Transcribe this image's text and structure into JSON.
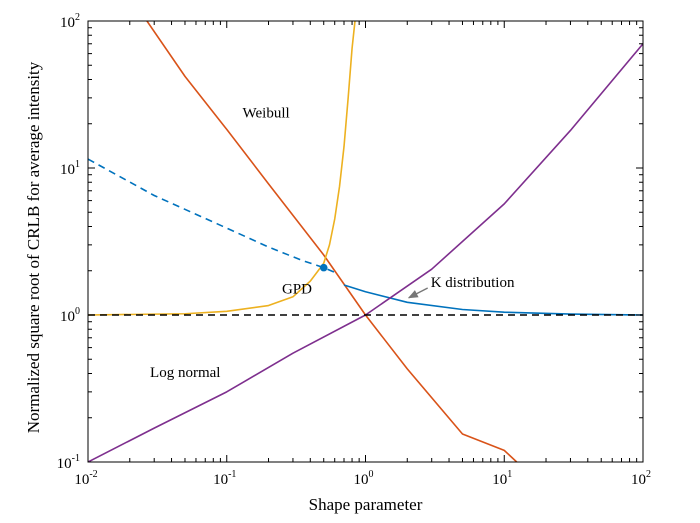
{
  "chart_data": {
    "type": "line",
    "xlabel": "Shape parameter",
    "ylabel": "Normalized square root of CRLB for average intensity",
    "xscale": "log",
    "yscale": "log",
    "xlim": [
      0.01,
      100
    ],
    "ylim": [
      0.1,
      100
    ],
    "grid": false,
    "x_ticks": [
      {
        "value": 0.01,
        "base": "10",
        "exp": "-2"
      },
      {
        "value": 0.1,
        "base": "10",
        "exp": "-1"
      },
      {
        "value": 1,
        "base": "10",
        "exp": "0"
      },
      {
        "value": 10,
        "base": "10",
        "exp": "1"
      },
      {
        "value": 100,
        "base": "10",
        "exp": "2"
      }
    ],
    "y_ticks": [
      {
        "value": 0.1,
        "base": "10",
        "exp": "-1"
      },
      {
        "value": 1,
        "base": "10",
        "exp": "0"
      },
      {
        "value": 10,
        "base": "10",
        "exp": "1"
      },
      {
        "value": 100,
        "base": "10",
        "exp": "2"
      }
    ],
    "series": [
      {
        "label": "Weibull",
        "color": "#d95319",
        "style": "solid",
        "x": [
          0.0266,
          0.05,
          0.1,
          0.2,
          0.5,
          1,
          2,
          5,
          10,
          12.3
        ],
        "y": [
          100,
          42,
          18.3,
          7.8,
          2.56,
          1.0,
          0.43,
          0.155,
          0.12,
          0.1
        ]
      },
      {
        "label": "GPD",
        "color": "#edb120",
        "style": "solid",
        "x": [
          0.01,
          0.05,
          0.1,
          0.2,
          0.3,
          0.4,
          0.45,
          0.5,
          0.55,
          0.6,
          0.65,
          0.7,
          0.75,
          0.8,
          0.84
        ],
        "y": [
          1.0,
          1.02,
          1.06,
          1.16,
          1.33,
          1.7,
          1.97,
          2.25,
          3.0,
          4.5,
          7.5,
          14,
          30,
          65,
          100
        ]
      },
      {
        "label": "K distribution",
        "color": "#0072bd",
        "style": "dashed",
        "x": [
          0.01,
          0.03,
          0.1,
          0.2,
          0.35,
          0.5,
          0.6
        ],
        "y": [
          11.5,
          6.5,
          3.9,
          2.9,
          2.35,
          2.1,
          1.95
        ]
      },
      {
        "label": "",
        "color": "#0072bd",
        "style": "solid",
        "x": [
          0.7,
          1,
          2,
          5,
          10,
          30,
          100
        ],
        "y": [
          1.6,
          1.44,
          1.22,
          1.09,
          1.045,
          1.015,
          1.0
        ]
      },
      {
        "label": "Log normal",
        "color": "#7e2f8e",
        "style": "solid",
        "x": [
          0.01,
          0.03,
          0.1,
          0.3,
          1,
          3,
          10,
          30,
          100
        ],
        "y": [
          0.1,
          0.17,
          0.3,
          0.55,
          1.0,
          2.05,
          5.7,
          18,
          70
        ]
      },
      {
        "label": "",
        "color": "#000000",
        "style": "dashed",
        "x": [
          0.01,
          100
        ],
        "y": [
          1.0,
          1.0
        ]
      }
    ],
    "point": {
      "x": 0.5,
      "y": 2.1,
      "color": "#0072bd"
    },
    "annotations": [
      {
        "text": "Weibull",
        "x": 0.13,
        "y": 22
      },
      {
        "text": "GPD",
        "x": 0.25,
        "y": 1.4
      },
      {
        "text": "K distribution",
        "x": 2.95,
        "y": 1.55,
        "arrow_to": {
          "x": 2.05,
          "y": 1.31
        }
      },
      {
        "text": "Log normal",
        "x": 0.028,
        "y": 0.38
      }
    ]
  }
}
